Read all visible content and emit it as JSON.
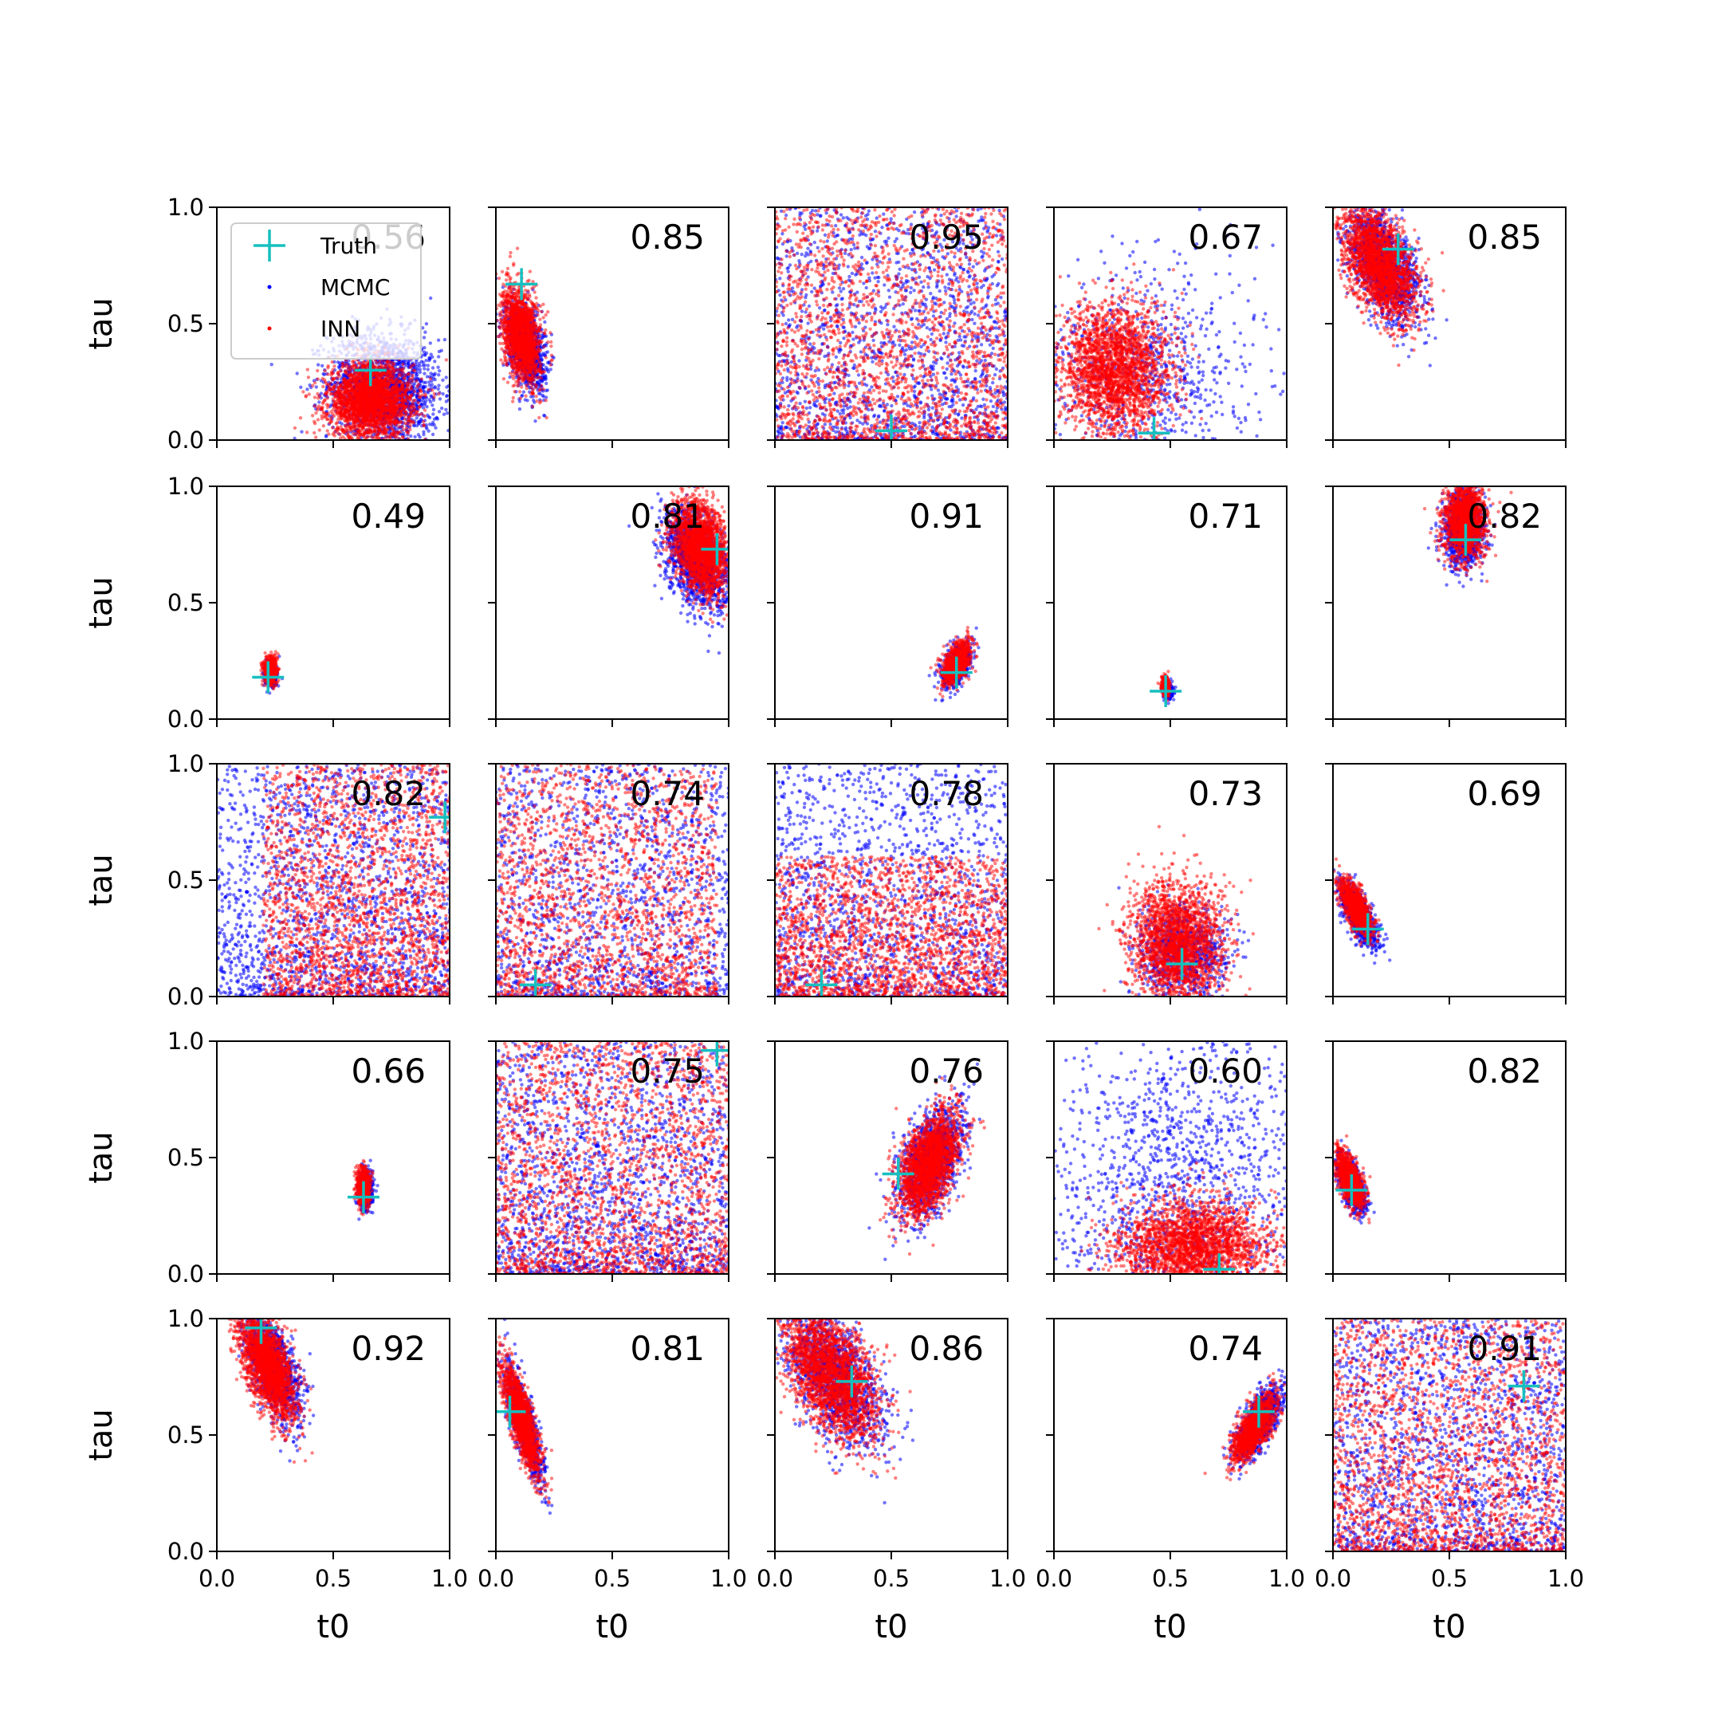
{
  "chart_data": {
    "type": "scatter",
    "rows": 5,
    "cols": 5,
    "xlabel": "t0",
    "ylabel": "tau",
    "xlim": [
      0,
      1
    ],
    "ylim": [
      0,
      1
    ],
    "x_ticks": [
      "0.0",
      "0.5",
      "1.0"
    ],
    "y_ticks": [
      "0.0",
      "0.5",
      "1.0"
    ],
    "colors": {
      "MCMC": "#0000ff",
      "INN": "#ff0000",
      "Truth": "#17bfbf"
    },
    "legend": {
      "placement": "upper-left of first panel",
      "entries": [
        "Truth",
        "MCMC",
        "INN"
      ]
    },
    "panels": [
      {
        "score": "0.56",
        "truth": [
          0.66,
          0.3
        ],
        "shape": "blob",
        "mcmc": {
          "cx": 0.72,
          "cy": 0.22,
          "sx": 0.12,
          "sy": 0.12,
          "r": -0.1,
          "n": 1800
        },
        "inn": {
          "cx": 0.66,
          "cy": 0.17,
          "sx": 0.09,
          "sy": 0.08,
          "r": 0,
          "n": 2600
        }
      },
      {
        "score": "0.85",
        "truth": [
          0.11,
          0.67
        ],
        "shape": "blob",
        "mcmc": {
          "cx": 0.13,
          "cy": 0.4,
          "sx": 0.04,
          "sy": 0.09,
          "r": -0.4,
          "n": 1200
        },
        "inn": {
          "cx": 0.11,
          "cy": 0.45,
          "sx": 0.04,
          "sy": 0.1,
          "r": -0.3,
          "n": 1800
        }
      },
      {
        "score": "0.95",
        "truth": [
          0.5,
          0.04
        ],
        "shape": "uniform",
        "mcmc": {
          "x0": 0,
          "x1": 1,
          "y0": 0,
          "y1": 1,
          "n": 1600
        },
        "inn": {
          "x0": 0,
          "x1": 1,
          "y0": 0,
          "y1": 1,
          "n": 2200
        }
      },
      {
        "score": "0.67",
        "truth": [
          0.43,
          0.03
        ],
        "shape": "blob",
        "mcmc": {
          "cx": 0.4,
          "cy": 0.28,
          "sx": 0.25,
          "sy": 0.25,
          "r": 0,
          "n": 900
        },
        "inn": {
          "cx": 0.26,
          "cy": 0.3,
          "sx": 0.12,
          "sy": 0.14,
          "r": 0,
          "n": 2400
        }
      },
      {
        "score": "0.85",
        "truth": [
          0.28,
          0.82
        ],
        "shape": "blob",
        "mcmc": {
          "cx": 0.22,
          "cy": 0.75,
          "sx": 0.08,
          "sy": 0.12,
          "r": -0.5,
          "n": 1400
        },
        "inn": {
          "cx": 0.2,
          "cy": 0.76,
          "sx": 0.08,
          "sy": 0.12,
          "r": -0.5,
          "n": 2200
        }
      },
      {
        "score": "0.49",
        "truth": [
          0.22,
          0.18
        ],
        "shape": "blob",
        "mcmc": {
          "cx": 0.23,
          "cy": 0.19,
          "sx": 0.012,
          "sy": 0.025,
          "r": 0,
          "n": 500
        },
        "inn": {
          "cx": 0.23,
          "cy": 0.21,
          "sx": 0.013,
          "sy": 0.028,
          "r": 0,
          "n": 700
        }
      },
      {
        "score": "0.81",
        "truth": [
          0.95,
          0.73
        ],
        "shape": "blob",
        "mcmc": {
          "cx": 0.86,
          "cy": 0.68,
          "sx": 0.07,
          "sy": 0.11,
          "r": -0.4,
          "n": 1400
        },
        "inn": {
          "cx": 0.88,
          "cy": 0.74,
          "sx": 0.06,
          "sy": 0.1,
          "r": -0.3,
          "n": 2200
        }
      },
      {
        "score": "0.91",
        "truth": [
          0.78,
          0.2
        ],
        "shape": "blob",
        "mcmc": {
          "cx": 0.78,
          "cy": 0.23,
          "sx": 0.03,
          "sy": 0.045,
          "r": 0.5,
          "n": 700
        },
        "inn": {
          "cx": 0.78,
          "cy": 0.24,
          "sx": 0.03,
          "sy": 0.045,
          "r": 0.5,
          "n": 1000
        }
      },
      {
        "score": "0.71",
        "truth": [
          0.48,
          0.12
        ],
        "shape": "blob",
        "mcmc": {
          "cx": 0.49,
          "cy": 0.12,
          "sx": 0.01,
          "sy": 0.015,
          "r": 0,
          "n": 300
        },
        "inn": {
          "cx": 0.48,
          "cy": 0.14,
          "sx": 0.008,
          "sy": 0.02,
          "r": 0,
          "n": 400
        }
      },
      {
        "score": "0.82",
        "truth": [
          0.57,
          0.77
        ],
        "shape": "blob",
        "mcmc": {
          "cx": 0.56,
          "cy": 0.81,
          "sx": 0.04,
          "sy": 0.08,
          "r": 0,
          "n": 1200
        },
        "inn": {
          "cx": 0.57,
          "cy": 0.85,
          "sx": 0.045,
          "sy": 0.08,
          "r": 0,
          "n": 1600
        }
      },
      {
        "score": "0.82",
        "truth": [
          0.98,
          0.77
        ],
        "shape": "uniform",
        "mcmc": {
          "x0": 0,
          "x1": 1,
          "y0": 0,
          "y1": 1,
          "n": 1800
        },
        "inn": {
          "x0": 0.2,
          "x1": 1,
          "y0": 0,
          "y1": 1,
          "n": 2200
        }
      },
      {
        "score": "0.74",
        "truth": [
          0.17,
          0.05
        ],
        "shape": "uniform",
        "mcmc": {
          "x0": 0,
          "x1": 1,
          "y0": 0,
          "y1": 1,
          "n": 1500
        },
        "inn": {
          "x0": 0,
          "x1": 0.95,
          "y0": 0,
          "y1": 1,
          "n": 2000
        }
      },
      {
        "score": "0.78",
        "truth": [
          0.2,
          0.05
        ],
        "shape": "uniform",
        "mcmc": {
          "x0": 0,
          "x1": 1,
          "y0": 0,
          "y1": 1,
          "n": 1500
        },
        "inn": {
          "x0": 0,
          "x1": 1,
          "y0": 0,
          "y1": 0.6,
          "n": 2200
        }
      },
      {
        "score": "0.73",
        "truth": [
          0.55,
          0.14
        ],
        "shape": "blob",
        "mcmc": {
          "cx": 0.55,
          "cy": 0.18,
          "sx": 0.1,
          "sy": 0.1,
          "r": 0,
          "n": 900
        },
        "inn": {
          "cx": 0.53,
          "cy": 0.22,
          "sx": 0.1,
          "sy": 0.13,
          "r": 0,
          "n": 2200
        }
      },
      {
        "score": "0.69",
        "truth": [
          0.15,
          0.29
        ],
        "shape": "blob",
        "mcmc": {
          "cx": 0.11,
          "cy": 0.35,
          "sx": 0.04,
          "sy": 0.07,
          "r": -0.7,
          "n": 900
        },
        "inn": {
          "cx": 0.1,
          "cy": 0.38,
          "sx": 0.035,
          "sy": 0.06,
          "r": -0.7,
          "n": 1200
        }
      },
      {
        "score": "0.66",
        "truth": [
          0.63,
          0.33
        ],
        "shape": "blob",
        "mcmc": {
          "cx": 0.64,
          "cy": 0.36,
          "sx": 0.015,
          "sy": 0.04,
          "r": 0,
          "n": 500
        },
        "inn": {
          "cx": 0.63,
          "cy": 0.37,
          "sx": 0.014,
          "sy": 0.04,
          "r": 0,
          "n": 700
        }
      },
      {
        "score": "0.75",
        "truth": [
          0.95,
          0.96
        ],
        "shape": "uniform",
        "mcmc": {
          "x0": 0,
          "x1": 1,
          "y0": 0,
          "y1": 1,
          "n": 1800
        },
        "inn": {
          "x0": 0,
          "x1": 1,
          "y0": 0,
          "y1": 1,
          "n": 2200
        }
      },
      {
        "score": "0.76",
        "truth": [
          0.53,
          0.43
        ],
        "shape": "blob",
        "mcmc": {
          "cx": 0.67,
          "cy": 0.48,
          "sx": 0.07,
          "sy": 0.12,
          "r": 0.5,
          "n": 1300
        },
        "inn": {
          "cx": 0.66,
          "cy": 0.47,
          "sx": 0.065,
          "sy": 0.11,
          "r": 0.5,
          "n": 2200
        }
      },
      {
        "score": "0.60",
        "truth": [
          0.71,
          0.02
        ],
        "shape": "blob",
        "mcmc": {
          "cx": 0.55,
          "cy": 0.35,
          "sx": 0.3,
          "sy": 0.35,
          "r": 0,
          "n": 1600
        },
        "inn": {
          "cx": 0.6,
          "cy": 0.12,
          "sx": 0.16,
          "sy": 0.1,
          "r": 0,
          "n": 2400
        }
      },
      {
        "score": "0.82",
        "truth": [
          0.08,
          0.36
        ],
        "shape": "blob",
        "mcmc": {
          "cx": 0.08,
          "cy": 0.38,
          "sx": 0.03,
          "sy": 0.06,
          "r": -0.6,
          "n": 800
        },
        "inn": {
          "cx": 0.07,
          "cy": 0.41,
          "sx": 0.03,
          "sy": 0.06,
          "r": -0.6,
          "n": 1100
        }
      },
      {
        "score": "0.92",
        "truth": [
          0.19,
          0.96
        ],
        "shape": "blob",
        "mcmc": {
          "cx": 0.24,
          "cy": 0.8,
          "sx": 0.06,
          "sy": 0.12,
          "r": -0.6,
          "n": 1300
        },
        "inn": {
          "cx": 0.22,
          "cy": 0.8,
          "sx": 0.06,
          "sy": 0.12,
          "r": -0.6,
          "n": 2200
        }
      },
      {
        "score": "0.81",
        "truth": [
          0.06,
          0.6
        ],
        "shape": "blob",
        "mcmc": {
          "cx": 0.12,
          "cy": 0.55,
          "sx": 0.04,
          "sy": 0.12,
          "r": -0.8,
          "n": 1100
        },
        "inn": {
          "cx": 0.11,
          "cy": 0.57,
          "sx": 0.04,
          "sy": 0.12,
          "r": -0.8,
          "n": 1700
        }
      },
      {
        "score": "0.86",
        "truth": [
          0.33,
          0.73
        ],
        "shape": "blob",
        "mcmc": {
          "cx": 0.26,
          "cy": 0.75,
          "sx": 0.1,
          "sy": 0.14,
          "r": -0.5,
          "n": 1400
        },
        "inn": {
          "cx": 0.24,
          "cy": 0.76,
          "sx": 0.1,
          "sy": 0.14,
          "r": -0.5,
          "n": 2400
        }
      },
      {
        "score": "0.74",
        "truth": [
          0.88,
          0.6
        ],
        "shape": "blob",
        "mcmc": {
          "cx": 0.88,
          "cy": 0.55,
          "sx": 0.05,
          "sy": 0.08,
          "r": 0.7,
          "n": 1000
        },
        "inn": {
          "cx": 0.86,
          "cy": 0.53,
          "sx": 0.045,
          "sy": 0.07,
          "r": 0.7,
          "n": 1500
        }
      },
      {
        "score": "0.91",
        "truth": [
          0.82,
          0.71
        ],
        "shape": "uniform",
        "mcmc": {
          "x0": 0,
          "x1": 1,
          "y0": 0,
          "y1": 1,
          "n": 1800
        },
        "inn": {
          "x0": 0,
          "x1": 1,
          "y0": 0,
          "y1": 1,
          "n": 2200
        }
      }
    ]
  }
}
